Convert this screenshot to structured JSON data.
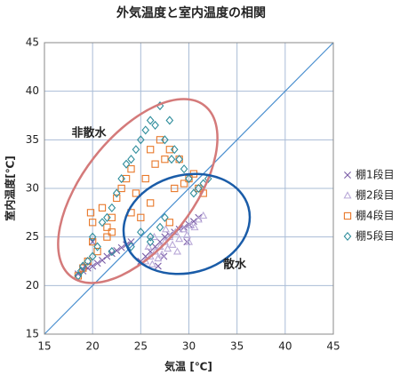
{
  "chart_data": {
    "type": "scatter",
    "title": "外気温度と室内温度の相関",
    "x_label": "気温 [℃]",
    "y_label": "室内温度[℃]",
    "xlim": [
      15,
      45
    ],
    "ylim": [
      15,
      45
    ],
    "xticks": [
      15,
      20,
      25,
      30,
      35,
      40,
      45
    ],
    "yticks": [
      15,
      20,
      25,
      30,
      35,
      40,
      45
    ],
    "grid": true,
    "legend": "right",
    "annotations": [
      "非散水",
      "散水"
    ],
    "series": [
      {
        "name": "棚1段目",
        "color": "#7b5ea7",
        "marker": "x",
        "x": [
          18.5,
          19,
          19.5,
          20,
          20.5,
          21,
          21.5,
          22,
          22.5,
          23,
          23.5,
          24,
          25,
          25.5,
          26,
          26.5,
          27,
          27.5,
          28,
          28.5,
          29,
          29.5,
          30,
          30.5,
          31,
          20,
          19.2,
          26.8,
          27.4,
          29.8
        ],
        "values": [
          21.2,
          21.5,
          21.8,
          22,
          22.3,
          22.6,
          23,
          23.3,
          23.6,
          23.9,
          24.2,
          24.5,
          22.5,
          23,
          23.5,
          24,
          24.5,
          25,
          25.2,
          25.5,
          25.8,
          26,
          26.3,
          26.6,
          27,
          24.5,
          22,
          22,
          23,
          24.5
        ]
      },
      {
        "name": "棚2段目",
        "color": "#b9a9d8",
        "marker": "triangle",
        "x": [
          25.5,
          26,
          26.2,
          26.5,
          26.8,
          27,
          27.2,
          27.5,
          27.8,
          28,
          28.3,
          28.6,
          29,
          29.4,
          29.8,
          30.2,
          30.6,
          31,
          26.4,
          27.6,
          28.8,
          30,
          31.5,
          25.8
        ],
        "values": [
          22.5,
          23,
          22.2,
          23.5,
          22.8,
          24,
          23.2,
          24.5,
          23.8,
          25,
          24.2,
          25.5,
          24.8,
          25.8,
          25.2,
          26.2,
          26,
          26.8,
          25,
          25.8,
          23.5,
          24.5,
          27.2,
          24
        ]
      },
      {
        "name": "棚4段目",
        "color": "#e8782a",
        "marker": "square",
        "x": [
          18.5,
          19,
          19.5,
          20,
          20.5,
          21,
          21.5,
          22,
          22.5,
          23,
          23.5,
          24,
          24.5,
          25,
          25.5,
          26,
          26.5,
          27,
          27.5,
          28,
          28.5,
          29,
          29.5,
          30,
          20,
          22,
          24,
          26,
          28,
          30.5,
          31,
          31.5,
          19.8,
          21.5
        ],
        "values": [
          21,
          21.8,
          22.5,
          26.5,
          23.5,
          28,
          25,
          27,
          29,
          30,
          31,
          32,
          29.5,
          27,
          31,
          34,
          32.5,
          35,
          33,
          34,
          30,
          33,
          30.5,
          31,
          24.5,
          25.5,
          27.5,
          28.5,
          26.5,
          31.5,
          30,
          29.5,
          27.5,
          26
        ]
      },
      {
        "name": "棚5段目",
        "color": "#2f8d9c",
        "marker": "diamond",
        "x": [
          18.5,
          19,
          19.5,
          20,
          20.5,
          21,
          21.5,
          22,
          22.5,
          23,
          23.5,
          24,
          24.5,
          25,
          25.5,
          26,
          26.5,
          27,
          27.5,
          28,
          28.2,
          28.5,
          29,
          29.5,
          30,
          30.5,
          31,
          31.5,
          32,
          20,
          22,
          24,
          26,
          27,
          18.8,
          25,
          26,
          27.5
        ],
        "values": [
          21,
          22,
          22.5,
          25,
          24,
          26.5,
          27,
          28,
          29.5,
          31,
          32.5,
          33,
          34,
          35,
          36,
          37,
          36.5,
          38.5,
          35,
          37,
          33,
          34,
          33,
          32,
          31,
          29.5,
          30,
          30.5,
          31,
          23,
          23.5,
          24,
          25,
          26,
          21.5,
          25.5,
          24.5,
          27
        ]
      }
    ]
  }
}
